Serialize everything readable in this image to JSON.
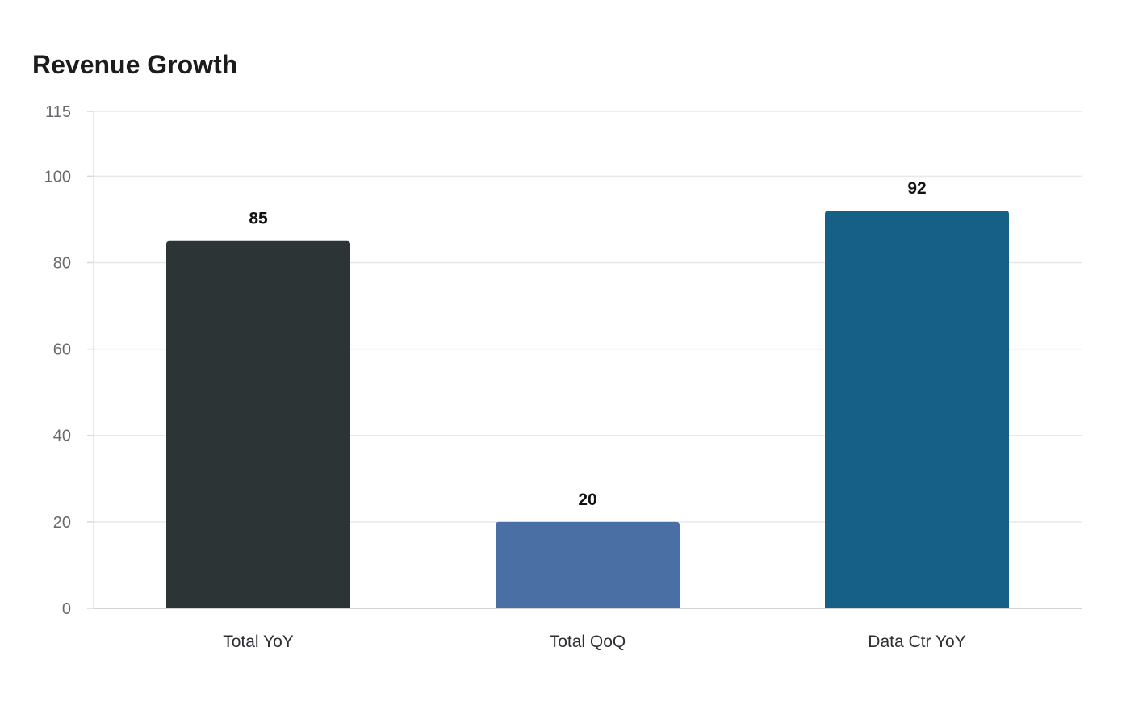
{
  "chart_data": {
    "type": "bar",
    "title": "Revenue Growth",
    "xlabel": "",
    "ylabel": "",
    "categories": [
      "Total YoY",
      "Total QoQ",
      "Data Ctr YoY"
    ],
    "values": [
      85,
      20,
      92
    ],
    "value_labels": [
      "85",
      "20",
      "92"
    ],
    "bar_colors": [
      "#2d3436",
      "#4a6fa5",
      "#166088"
    ],
    "ylim": [
      0,
      115
    ],
    "yticks": [
      0,
      20,
      40,
      60,
      80,
      100,
      115
    ],
    "ytick_labels": [
      "0",
      "20",
      "40",
      "60",
      "80",
      "100",
      "115"
    ],
    "grid": true,
    "legend": "none"
  }
}
